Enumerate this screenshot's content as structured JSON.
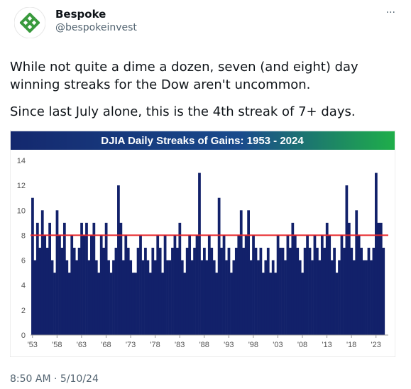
{
  "tweet": {
    "name": "Bespoke",
    "handle": "@bespokeinvest",
    "more": "···",
    "paragraphs": [
      "While not quite a dime a dozen, seven (and eight) day winning streaks for the Dow aren't uncommon.",
      "Since last July alone, this is the 4th streak of 7+ days."
    ],
    "timestamp": "8:50 AM · 5/10/24"
  },
  "chart_data": {
    "type": "bar",
    "title": "DJIA Daily Streaks of Gains: 1953 - 2024",
    "color": "#12216a",
    "reference_line": 8,
    "reference_color": "#e8262a",
    "x": [
      1953,
      1953.5,
      1954,
      1954.5,
      1955,
      1955.5,
      1956,
      1956.5,
      1957,
      1957.5,
      1958,
      1958.5,
      1959,
      1959.5,
      1960,
      1960.5,
      1961,
      1961.5,
      1962,
      1962.5,
      1963,
      1963.5,
      1964,
      1964.5,
      1965,
      1965.5,
      1966,
      1966.5,
      1967,
      1967.5,
      1968,
      1968.5,
      1969,
      1969.5,
      1970,
      1970.5,
      1971,
      1971.5,
      1972,
      1972.5,
      1973,
      1973.5,
      1974,
      1974.5,
      1975,
      1975.5,
      1976,
      1976.5,
      1977,
      1977.5,
      1978,
      1978.5,
      1979,
      1979.5,
      1980,
      1980.5,
      1981,
      1981.5,
      1982,
      1982.5,
      1983,
      1983.5,
      1984,
      1984.5,
      1985,
      1985.5,
      1986,
      1986.5,
      1987,
      1987.5,
      1988,
      1988.5,
      1989,
      1989.5,
      1990,
      1990.5,
      1991,
      1991.5,
      1992,
      1992.5,
      1993,
      1993.5,
      1994,
      1994.5,
      1995,
      1995.5,
      1996,
      1996.5,
      1997,
      1997.5,
      1998,
      1998.5,
      1999,
      1999.5,
      2000,
      2000.5,
      2001,
      2001.5,
      2002,
      2002.5,
      2003,
      2003.5,
      2004,
      2004.5,
      2005,
      2005.5,
      2006,
      2006.5,
      2007,
      2007.5,
      2008,
      2008.5,
      2009,
      2009.5,
      2010,
      2010.5,
      2011,
      2011.5,
      2012,
      2012.5,
      2013,
      2013.5,
      2014,
      2014.5,
      2015,
      2015.5,
      2016,
      2016.5,
      2017,
      2017.5,
      2018,
      2018.5,
      2019,
      2019.5,
      2020,
      2020.5,
      2021,
      2021.5,
      2022,
      2022.5,
      2023,
      2023.5,
      2024,
      2024.5
    ],
    "values": [
      11,
      6,
      9,
      7,
      10,
      8,
      7,
      9,
      6,
      5,
      10,
      8,
      7,
      9,
      6,
      5,
      8,
      7,
      6,
      7,
      9,
      8,
      9,
      6,
      8,
      9,
      6,
      5,
      8,
      7,
      9,
      6,
      5,
      6,
      7,
      12,
      9,
      6,
      8,
      7,
      6,
      5,
      5,
      7,
      8,
      6,
      7,
      6,
      5,
      7,
      6,
      8,
      7,
      5,
      8,
      6,
      6,
      7,
      8,
      7,
      9,
      6,
      5,
      7,
      8,
      6,
      7,
      8,
      13,
      6,
      7,
      6,
      8,
      7,
      6,
      5,
      11,
      7,
      8,
      6,
      7,
      5,
      6,
      7,
      8,
      10,
      7,
      8,
      10,
      6,
      8,
      7,
      6,
      7,
      5,
      6,
      7,
      5,
      6,
      5,
      8,
      7,
      7,
      6,
      8,
      7,
      9,
      8,
      7,
      6,
      5,
      7,
      8,
      7,
      6,
      8,
      7,
      6,
      8,
      7,
      9,
      8,
      6,
      7,
      5,
      6,
      8,
      7,
      12,
      9,
      7,
      6,
      10,
      8,
      7,
      6,
      6,
      7,
      6,
      7,
      13,
      9,
      9,
      7
    ],
    "xlim": [
      1952.6,
      2025.5
    ],
    "xticks": [
      {
        "value": 1953,
        "label": "'53"
      },
      {
        "value": 1958,
        "label": "'58"
      },
      {
        "value": 1963,
        "label": "'63"
      },
      {
        "value": 1968,
        "label": "'68"
      },
      {
        "value": 1973,
        "label": "'73"
      },
      {
        "value": 1978,
        "label": "'78"
      },
      {
        "value": 1983,
        "label": "'83"
      },
      {
        "value": 1988,
        "label": "'88"
      },
      {
        "value": 1993,
        "label": "'93"
      },
      {
        "value": 1998,
        "label": "'98"
      },
      {
        "value": 2003,
        "label": "'03"
      },
      {
        "value": 2008,
        "label": "'08"
      },
      {
        "value": 2013,
        "label": "'13"
      },
      {
        "value": 2018,
        "label": "'18"
      },
      {
        "value": 2023,
        "label": "'23"
      }
    ],
    "ylim": [
      0,
      14
    ],
    "yticks": [
      0,
      2,
      4,
      6,
      8,
      10,
      12,
      14
    ]
  }
}
